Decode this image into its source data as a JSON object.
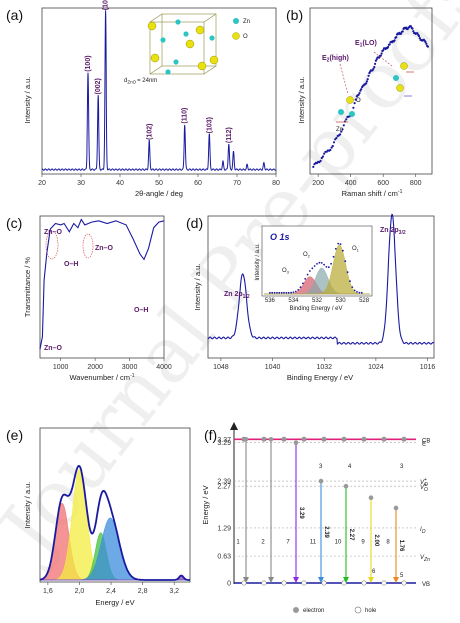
{
  "watermark": "Journal Pre-proofs",
  "chart_data": [
    {
      "panel": "(a)",
      "type": "line",
      "xlabel": "2θ-angle / deg",
      "ylabel": "Intensity / a.u.",
      "xlim": [
        20,
        80
      ],
      "xticks": [
        20,
        30,
        40,
        50,
        60,
        70,
        80
      ],
      "peaks": [
        {
          "x": 31.8,
          "y": 0.6,
          "label": "(100)"
        },
        {
          "x": 34.4,
          "y": 0.46,
          "label": "(002)"
        },
        {
          "x": 36.3,
          "y": 0.98,
          "label": "(101)"
        },
        {
          "x": 47.5,
          "y": 0.18,
          "label": "(102)"
        },
        {
          "x": 56.6,
          "y": 0.28,
          "label": "(110)"
        },
        {
          "x": 62.9,
          "y": 0.22,
          "label": "(103)"
        },
        {
          "x": 67.9,
          "y": 0.16,
          "label": "(112)"
        },
        {
          "x": 69.1,
          "y": 0.11,
          "label": ""
        },
        {
          "x": 66.4,
          "y": 0.05,
          "label": ""
        },
        {
          "x": 72.6,
          "y": 0.03,
          "label": ""
        },
        {
          "x": 76.9,
          "y": 0.04,
          "label": ""
        }
      ],
      "annotation_size": "d",
      "annotation_size_sub": "ZnO",
      "annotation_size_value": "= 24nm",
      "legend": [
        {
          "name": "Zn",
          "color": "#2ec4c4"
        },
        {
          "name": "O",
          "color": "#e8e010"
        }
      ]
    },
    {
      "panel": "(b)",
      "type": "scatter",
      "xlabel": "Raman shift / cm",
      "xlabel_sup": "-1",
      "ylabel": "Intensity / a.u.",
      "xlim": [
        150,
        900
      ],
      "xticks": [
        200,
        400,
        600,
        800
      ],
      "points": [
        [
          170,
          0.02
        ],
        [
          200,
          0.05
        ],
        [
          230,
          0.09
        ],
        [
          260,
          0.12
        ],
        [
          290,
          0.16
        ],
        [
          320,
          0.21
        ],
        [
          350,
          0.27
        ],
        [
          380,
          0.33
        ],
        [
          410,
          0.38
        ],
        [
          438,
          0.46
        ],
        [
          460,
          0.52
        ],
        [
          480,
          0.53
        ],
        [
          500,
          0.58
        ],
        [
          520,
          0.62
        ],
        [
          540,
          0.66
        ],
        [
          560,
          0.7
        ],
        [
          580,
          0.74
        ],
        [
          600,
          0.76
        ],
        [
          620,
          0.79
        ],
        [
          640,
          0.8
        ],
        [
          660,
          0.83
        ],
        [
          680,
          0.85
        ],
        [
          700,
          0.88
        ],
        [
          720,
          0.89
        ],
        [
          740,
          0.91
        ],
        [
          760,
          0.92
        ],
        [
          780,
          0.9
        ],
        [
          800,
          0.88
        ],
        [
          820,
          0.85
        ],
        [
          840,
          0.84
        ],
        [
          860,
          0.81
        ],
        [
          880,
          0.8
        ]
      ],
      "annotations": [
        {
          "main": "E",
          "sub": "2",
          "rest": "(high)"
        },
        {
          "main": "E",
          "sub": "1",
          "rest": "(LO)"
        }
      ],
      "icon_labels": [
        "O",
        "Zn"
      ]
    },
    {
      "panel": "(c)",
      "type": "line",
      "xlabel": "Wavenumber / cm",
      "xlabel_sup": "-1",
      "ylabel": "Transmittance / %",
      "xlim": [
        400,
        4000
      ],
      "xticks": [
        1000,
        2000,
        3000,
        4000
      ],
      "points": [
        [
          400,
          0.05
        ],
        [
          470,
          0.14
        ],
        [
          520,
          0.55
        ],
        [
          600,
          0.75
        ],
        [
          700,
          0.92
        ],
        [
          850,
          0.96
        ],
        [
          1000,
          0.95
        ],
        [
          1100,
          0.96
        ],
        [
          1250,
          0.9
        ],
        [
          1380,
          0.96
        ],
        [
          1500,
          0.93
        ],
        [
          1600,
          0.99
        ],
        [
          1700,
          0.95
        ],
        [
          1900,
          0.97
        ],
        [
          2100,
          0.98
        ],
        [
          2350,
          0.96
        ],
        [
          2600,
          0.98
        ],
        [
          2900,
          0.95
        ],
        [
          3100,
          0.85
        ],
        [
          3300,
          0.74
        ],
        [
          3420,
          0.7
        ],
        [
          3550,
          0.78
        ],
        [
          3700,
          0.93
        ],
        [
          3850,
          0.97
        ],
        [
          4000,
          0.98
        ]
      ],
      "annotations": [
        "Zn–O",
        "O–H",
        "Zn–O",
        "O–H",
        "Zn–O"
      ]
    },
    {
      "panel": "(d)",
      "type": "line",
      "xlabel": "Binding Energy / eV",
      "ylabel": "Intensity / a.u.",
      "xlim": [
        1050,
        1015
      ],
      "xticks": [
        1048,
        1040,
        1032,
        1024,
        1016
      ],
      "peaks": [
        {
          "x": 1044.6,
          "y": 0.48,
          "main": "Zn 2p",
          "sub": "1/2"
        },
        {
          "x": 1021.5,
          "y": 0.96,
          "main": "Zn 2p",
          "sub": "3/2"
        }
      ],
      "inset": {
        "title": "O 1s",
        "xlabel": "Binding Energy / eV",
        "ylabel": "Intensity / a.u.",
        "xticks": [
          536,
          534,
          532,
          530,
          528
        ],
        "components": [
          {
            "name": "O3",
            "main": "O",
            "sub": "3",
            "center": 532.6,
            "height": 0.3,
            "color": "#d45a6a"
          },
          {
            "name": "O2",
            "main": "O",
            "sub": "2",
            "center": 531.6,
            "height": 0.45,
            "color": "#8aa8a8"
          },
          {
            "name": "O1",
            "main": "O",
            "sub": "1",
            "center": 530.1,
            "height": 0.85,
            "color": "#b8a830"
          }
        ]
      }
    },
    {
      "panel": "(e)",
      "type": "area",
      "xlabel": "Energy / eV",
      "ylabel": "Intensity / a.u.",
      "xlim": [
        1.5,
        3.4
      ],
      "xticks": [
        1.6,
        2.0,
        2.4,
        2.8,
        3.2
      ],
      "xtick_labels": [
        "1,6",
        "2,0",
        "2,4",
        "2,8",
        "3,2"
      ],
      "components": [
        {
          "center": 1.78,
          "height": 0.52,
          "width": 0.12,
          "color": "#f07070"
        },
        {
          "center": 2.0,
          "height": 0.75,
          "width": 0.13,
          "color": "#f4ec40"
        },
        {
          "center": 2.27,
          "height": 0.32,
          "width": 0.1,
          "color": "#40c040"
        },
        {
          "center": 2.39,
          "height": 0.42,
          "width": 0.16,
          "color": "#3c8cdc"
        },
        {
          "center": 3.29,
          "height": 0.03,
          "width": 0.04,
          "color": "#8a40c0"
        }
      ],
      "envelope_color": "#1a1aa0"
    },
    {
      "panel": "(f)",
      "type": "diagram",
      "ylabel": "Energy / eV",
      "ylim": [
        0,
        3.4
      ],
      "levels": [
        {
          "y": 3.37,
          "label": "3.37",
          "right": "CB"
        },
        {
          "y": 3.29,
          "label": "3.29",
          "right": "E"
        },
        {
          "y": 2.39,
          "label": "2.39",
          "right_main": "V",
          "right_sub": "O",
          "right_sup": "+"
        },
        {
          "y": 2.27,
          "label": "2.27",
          "right_main": "V",
          "right_sub": "O",
          "right_sup": "+"
        },
        {
          "y": 1.29,
          "label": "1.29",
          "right_main": "I",
          "right_sub": "O"
        },
        {
          "y": 0.63,
          "label": "0.63",
          "right_main": "V",
          "right_sub": "Zn"
        },
        {
          "y": 0.0,
          "label": "0",
          "right": "VB"
        }
      ],
      "transitions": [
        {
          "top": 3.37,
          "bottom": 0.0,
          "color": "#888888",
          "num": "1",
          "energy": ""
        },
        {
          "top": 3.37,
          "bottom": 0.0,
          "color": "#888888",
          "num": "2",
          "energy": ""
        },
        {
          "top": 3.29,
          "bottom": 0.0,
          "color": "#8a2be2",
          "num": "7",
          "energy": "3.29"
        },
        {
          "top": 2.39,
          "bottom": 0.0,
          "color": "#3c8cdc",
          "num": "11",
          "energy": "2.39"
        },
        {
          "top": 2.27,
          "bottom": 0.0,
          "color": "#22bb22",
          "num": "10",
          "energy": "2.27"
        },
        {
          "top": 2.0,
          "bottom": 0.0,
          "color": "#e8d820",
          "num": "9",
          "energy": "2.00"
        },
        {
          "top": 1.76,
          "bottom": 0.0,
          "color": "#e88a20",
          "num": "8",
          "energy": "1.76"
        }
      ],
      "side_numbers": [
        "3",
        "4",
        "3",
        "6",
        "5"
      ],
      "legend": [
        "electron",
        "hole"
      ]
    }
  ]
}
